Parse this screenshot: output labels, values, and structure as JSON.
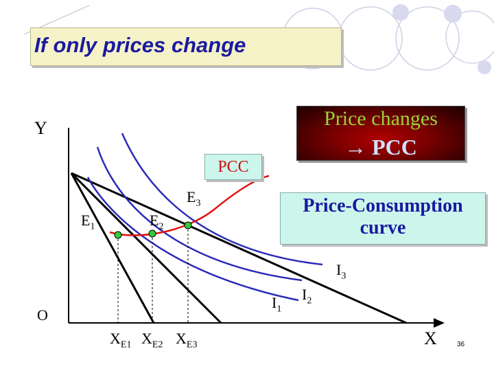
{
  "slide": {
    "title": "If only prices change",
    "page_number": "36"
  },
  "callouts": {
    "pcc_box": "PCC",
    "price_changes_line1": "Price changes",
    "price_changes_line2": "→ PCC",
    "definition_line1": "Price-Consumption",
    "definition_line2": "curve"
  },
  "axes": {
    "y_label": "Y",
    "x_label": "X",
    "origin_label": "O"
  },
  "points": [
    {
      "label": "E",
      "sub": "1"
    },
    {
      "label": "E",
      "sub": "2"
    },
    {
      "label": "E",
      "sub": "3"
    }
  ],
  "indifference_labels": [
    {
      "label": "I",
      "sub": "1"
    },
    {
      "label": "I",
      "sub": "2"
    },
    {
      "label": "I",
      "sub": "3"
    }
  ],
  "x_ticks": [
    {
      "label": "X",
      "sub": "E1"
    },
    {
      "label": "X",
      "sub": "E2"
    },
    {
      "label": "X",
      "sub": "E3"
    }
  ],
  "colors": {
    "title_text": "#1a1aa0",
    "indifference_curve": "#2a2ab8",
    "pcc_curve": "#dd1111",
    "point_fill": "#33cc33",
    "budget_line": "#000000"
  }
}
